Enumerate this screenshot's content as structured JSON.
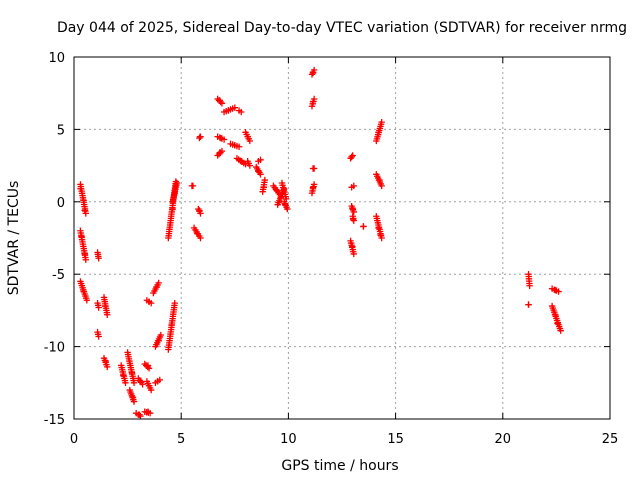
{
  "chart_data": {
    "type": "scatter",
    "title": "Day 044 of 2025, Sidereal Day-to-day VTEC variation (SDTVAR) for receiver nrmg",
    "xlabel": "GPS time / hours",
    "ylabel": "SDTVAR / TECUs",
    "xlim": [
      0,
      25
    ],
    "ylim": [
      -15,
      10
    ],
    "xticks": [
      0,
      5,
      10,
      15,
      20,
      25
    ],
    "yticks": [
      -15,
      -10,
      -5,
      0,
      5,
      10
    ],
    "grid": true,
    "marker": "+",
    "marker_color": "#ff0000",
    "segments": [
      [
        0.3,
        1.2,
        0.55,
        -0.8
      ],
      [
        0.3,
        -2.0,
        0.55,
        -4.0
      ],
      [
        0.3,
        -5.5,
        0.6,
        -6.8
      ],
      [
        1.1,
        -3.5,
        1.15,
        -3.9
      ],
      [
        1.1,
        -7.0,
        1.15,
        -7.3
      ],
      [
        1.1,
        -9.0,
        1.15,
        -9.3
      ],
      [
        1.4,
        -6.6,
        1.55,
        -7.8
      ],
      [
        1.4,
        -10.8,
        1.55,
        -11.4
      ],
      [
        2.2,
        -11.3,
        2.4,
        -12.5
      ],
      [
        2.5,
        -10.4,
        2.8,
        -12.5
      ],
      [
        2.6,
        -13.0,
        2.8,
        -13.8
      ],
      [
        2.9,
        -14.6,
        3.1,
        -14.8
      ],
      [
        3.0,
        -12.2,
        3.2,
        -12.6
      ],
      [
        3.3,
        -11.2,
        3.5,
        -11.5
      ],
      [
        3.4,
        -12.4,
        3.6,
        -13.0
      ],
      [
        3.3,
        -14.5,
        3.55,
        -14.6
      ],
      [
        3.4,
        -6.8,
        3.6,
        -7.0
      ],
      [
        3.7,
        -6.3,
        3.95,
        -5.6
      ],
      [
        3.8,
        -12.5,
        4.0,
        -12.3
      ],
      [
        3.8,
        -10.0,
        4.05,
        -9.2
      ],
      [
        4.4,
        -10.2,
        4.7,
        -7.0
      ],
      [
        4.4,
        -2.5,
        4.75,
        1.4
      ],
      [
        4.6,
        0.0,
        4.8,
        1.3
      ],
      [
        5.5,
        1.1,
        5.55,
        1.1
      ],
      [
        5.6,
        -1.8,
        5.9,
        -2.5
      ],
      [
        5.8,
        -0.5,
        5.9,
        -0.8
      ],
      [
        5.85,
        4.4,
        5.9,
        4.5
      ],
      [
        6.7,
        7.1,
        6.9,
        6.8
      ],
      [
        6.7,
        4.5,
        7.0,
        4.3
      ],
      [
        6.7,
        3.2,
        6.9,
        3.5
      ],
      [
        7.0,
        6.2,
        7.5,
        6.5
      ],
      [
        7.3,
        4.0,
        7.7,
        3.8
      ],
      [
        7.6,
        3.0,
        8.0,
        2.6
      ],
      [
        8.0,
        4.8,
        8.2,
        4.2
      ],
      [
        8.1,
        2.8,
        8.2,
        2.5
      ],
      [
        7.7,
        6.3,
        7.8,
        6.2
      ],
      [
        8.5,
        2.4,
        8.7,
        1.9
      ],
      [
        8.6,
        2.8,
        8.7,
        2.9
      ],
      [
        8.8,
        0.7,
        8.9,
        1.5
      ],
      [
        9.3,
        1.1,
        9.6,
        0.5
      ],
      [
        9.5,
        -0.2,
        9.8,
        0.9
      ],
      [
        9.7,
        1.3,
        9.9,
        0.2
      ],
      [
        9.8,
        0.0,
        9.95,
        -0.5
      ],
      [
        11.1,
        8.8,
        11.2,
        9.1
      ],
      [
        11.1,
        6.6,
        11.2,
        7.1
      ],
      [
        11.15,
        2.3,
        11.2,
        2.3
      ],
      [
        11.1,
        0.6,
        11.2,
        1.2
      ],
      [
        12.9,
        3.0,
        13.0,
        3.2
      ],
      [
        12.95,
        1.0,
        13.05,
        1.1
      ],
      [
        12.95,
        -0.3,
        13.05,
        -0.7
      ],
      [
        12.9,
        -2.7,
        13.05,
        -3.6
      ],
      [
        13.0,
        -1.0,
        13.05,
        -1.3
      ],
      [
        13.5,
        -1.7,
        13.5,
        -1.7
      ],
      [
        14.1,
        4.2,
        14.35,
        5.5
      ],
      [
        14.1,
        1.9,
        14.35,
        1.1
      ],
      [
        14.1,
        -1.0,
        14.35,
        -2.5
      ],
      [
        21.2,
        -5.0,
        21.25,
        -5.8
      ],
      [
        21.2,
        -7.1,
        21.2,
        -7.1
      ],
      [
        22.3,
        -6.0,
        22.6,
        -6.2
      ],
      [
        22.3,
        -7.2,
        22.7,
        -8.9
      ]
    ],
    "points": [
      [
        0.3,
        0.9
      ],
      [
        0.45,
        0.1
      ],
      [
        0.5,
        -0.6
      ],
      [
        0.35,
        -2.4
      ],
      [
        0.5,
        -3.6
      ],
      [
        0.45,
        -6.2
      ],
      [
        1.45,
        -7.2
      ],
      [
        1.48,
        -11.0
      ],
      [
        2.3,
        -12.0
      ],
      [
        2.7,
        -11.8
      ],
      [
        2.75,
        -13.5
      ],
      [
        3.05,
        -14.7
      ],
      [
        3.1,
        -12.4
      ],
      [
        3.45,
        -11.3
      ],
      [
        3.5,
        -12.7
      ],
      [
        3.45,
        -14.5
      ],
      [
        3.5,
        -6.9
      ],
      [
        3.85,
        -5.9
      ],
      [
        3.9,
        -12.4
      ],
      [
        3.95,
        -9.6
      ],
      [
        4.55,
        -8.5
      ],
      [
        4.6,
        -0.5
      ],
      [
        4.7,
        0.6
      ],
      [
        5.75,
        -2.2
      ],
      [
        5.85,
        -0.6
      ],
      [
        5.88,
        4.5
      ],
      [
        6.8,
        7.0
      ],
      [
        6.85,
        4.4
      ],
      [
        6.8,
        3.4
      ],
      [
        7.2,
        6.3
      ],
      [
        7.5,
        3.9
      ],
      [
        7.8,
        2.8
      ],
      [
        8.1,
        4.5
      ],
      [
        8.6,
        2.1
      ],
      [
        8.85,
        1.0
      ],
      [
        9.45,
        0.8
      ],
      [
        9.65,
        0.3
      ],
      [
        9.85,
        -0.2
      ],
      [
        11.15,
        8.9
      ],
      [
        11.15,
        6.9
      ],
      [
        11.15,
        1.0
      ],
      [
        12.95,
        3.1
      ],
      [
        13.0,
        -0.5
      ],
      [
        12.98,
        -3.1
      ],
      [
        13.02,
        -1.2
      ],
      [
        14.2,
        4.8
      ],
      [
        14.25,
        1.5
      ],
      [
        14.2,
        -1.8
      ],
      [
        14.3,
        -2.3
      ],
      [
        22.45,
        -6.1
      ],
      [
        22.45,
        -7.8
      ],
      [
        22.55,
        -8.4
      ]
    ]
  }
}
